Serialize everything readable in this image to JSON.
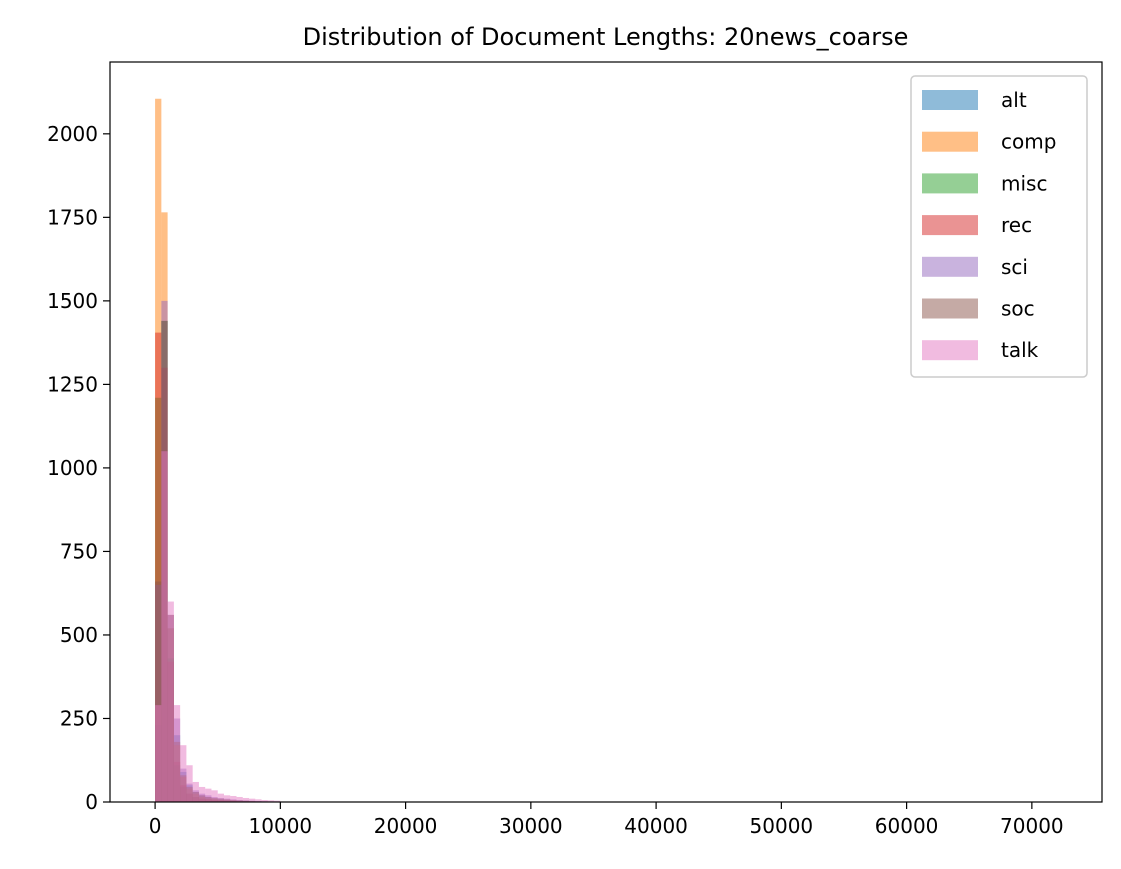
{
  "chart_data": {
    "type": "histogram",
    "title": "Distribution of Document Lengths: 20news_coarse",
    "xlabel": "",
    "ylabel": "",
    "xlim": [
      -3600,
      75600
    ],
    "ylim": [
      0,
      2215
    ],
    "x_ticks": [
      0,
      10000,
      20000,
      30000,
      40000,
      50000,
      60000,
      70000
    ],
    "x_tick_labels": [
      "0",
      "10000",
      "20000",
      "30000",
      "40000",
      "50000",
      "60000",
      "70000"
    ],
    "y_ticks": [
      0,
      250,
      500,
      750,
      1000,
      1250,
      1500,
      1750,
      2000
    ],
    "y_tick_labels": [
      "0",
      "250",
      "500",
      "750",
      "1000",
      "1250",
      "1500",
      "1750",
      "2000"
    ],
    "grid": false,
    "legend_position": "top-right",
    "bin_width": 500,
    "bin_start": 0,
    "series": [
      {
        "name": "alt",
        "color": "#1f77b4",
        "values": [
          230,
          1440,
          560,
          200,
          90,
          50,
          30,
          20,
          15,
          10,
          8,
          6,
          5,
          4,
          3,
          2,
          2,
          1,
          1,
          1
        ]
      },
      {
        "name": "comp",
        "color": "#ff7f0e",
        "values": [
          2105,
          1765,
          560,
          170,
          75,
          40,
          25,
          15,
          10,
          8,
          6,
          5,
          4,
          3,
          2,
          2,
          1,
          1,
          1,
          1
        ]
      },
      {
        "name": "misc",
        "color": "#2ca02c",
        "values": [
          1210,
          1440,
          430,
          110,
          45,
          25,
          15,
          10,
          8,
          6,
          5,
          4,
          3,
          2,
          2,
          1,
          1,
          1,
          1,
          1
        ]
      },
      {
        "name": "rec",
        "color": "#d62728",
        "values": [
          1405,
          1300,
          420,
          120,
          50,
          25,
          15,
          10,
          8,
          6,
          5,
          4,
          3,
          2,
          2,
          1,
          1,
          1,
          1,
          1
        ]
      },
      {
        "name": "sci",
        "color": "#9467bd",
        "values": [
          650,
          1500,
          560,
          250,
          100,
          55,
          35,
          25,
          20,
          15,
          12,
          10,
          8,
          6,
          5,
          4,
          3,
          2,
          2,
          1
        ]
      },
      {
        "name": "soc",
        "color": "#8c564b",
        "values": [
          660,
          1440,
          520,
          180,
          80,
          45,
          30,
          20,
          15,
          12,
          10,
          8,
          6,
          5,
          4,
          3,
          2,
          2,
          1,
          1
        ]
      },
      {
        "name": "talk",
        "color": "#e377c2",
        "values": [
          290,
          1050,
          600,
          290,
          170,
          110,
          60,
          45,
          40,
          35,
          25,
          20,
          18,
          15,
          12,
          10,
          8,
          6,
          5,
          4
        ]
      }
    ]
  }
}
